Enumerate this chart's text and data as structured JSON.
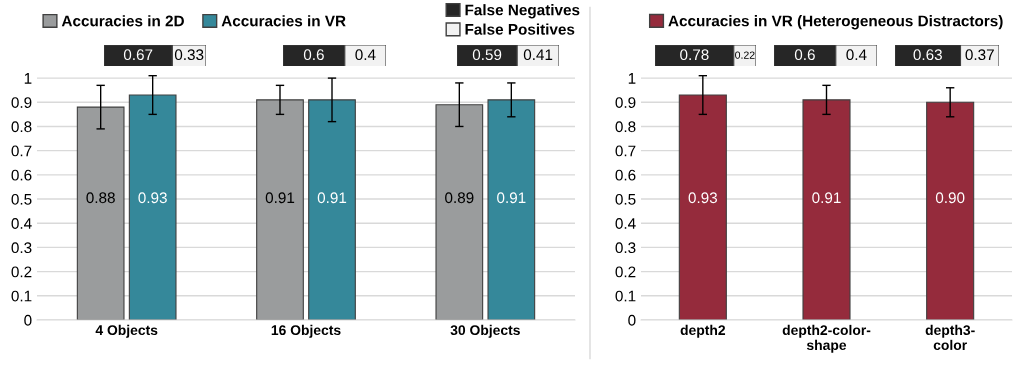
{
  "chart_data": [
    {
      "type": "bar",
      "orientation": "horizontal",
      "stacked": true,
      "categories": [
        null
      ],
      "xlim": [
        0,
        1
      ],
      "tick_labels": false,
      "data_labels": true,
      "series": [
        {
          "color": "#262626",
          "values": [
            0.67
          ]
        },
        {
          "color": "#f2f2f2",
          "values": [
            0.33
          ]
        }
      ]
    },
    {
      "type": "bar",
      "orientation": "horizontal",
      "stacked": true,
      "categories": [
        null
      ],
      "xlim": [
        0,
        1
      ],
      "tick_labels": false,
      "data_labels": true,
      "series": [
        {
          "color": "#262626",
          "values": [
            0.6
          ]
        },
        {
          "color": "#f2f2f2",
          "values": [
            0.4
          ]
        }
      ]
    },
    {
      "type": "bar",
      "orientation": "horizontal",
      "stacked": true,
      "categories": [
        null
      ],
      "xlim": [
        0,
        1
      ],
      "tick_labels": false,
      "data_labels": true,
      "legend": "top",
      "series": [
        {
          "name": "False Negatives",
          "color": "#262626",
          "values": [
            0.59
          ]
        },
        {
          "name": "False Positives",
          "color": "#f2f2f2",
          "values": [
            0.41
          ]
        }
      ]
    },
    {
      "type": "bar",
      "categories": [
        "4 Objects",
        "16 Objects",
        "30 Objects"
      ],
      "ylim": [
        0,
        1.05
      ],
      "yticks": [
        0,
        0.1,
        0.2,
        0.3,
        0.4,
        0.5,
        0.6,
        0.7,
        0.8,
        0.9,
        1
      ],
      "grid": "y",
      "legend": "top left",
      "series": [
        {
          "name": "Accuracies in 2D",
          "color": "#9a9c9d",
          "values": [
            0.88,
            0.91,
            0.89
          ],
          "errors": [
            0.09,
            0.06,
            0.09
          ],
          "value_labels": [
            "0.88",
            "0.91",
            "0.89"
          ]
        },
        {
          "name": "Accuracies in VR",
          "color": "#35889a",
          "values": [
            0.93,
            0.91,
            0.91
          ],
          "errors": [
            0.08,
            0.09,
            0.07
          ],
          "value_labels": [
            "0.93",
            "0.91",
            "0.91"
          ]
        }
      ]
    },
    {
      "type": "bar",
      "orientation": "horizontal",
      "stacked": true,
      "categories": [
        null
      ],
      "xlim": [
        0,
        1
      ],
      "tick_labels": false,
      "data_labels": true,
      "series": [
        {
          "color": "#262626",
          "values": [
            0.78
          ]
        },
        {
          "color": "#f2f2f2",
          "values": [
            0.22
          ]
        }
      ]
    },
    {
      "type": "bar",
      "orientation": "horizontal",
      "stacked": true,
      "categories": [
        null
      ],
      "xlim": [
        0,
        1
      ],
      "tick_labels": false,
      "data_labels": true,
      "series": [
        {
          "color": "#262626",
          "values": [
            0.6
          ]
        },
        {
          "color": "#f2f2f2",
          "values": [
            0.4
          ]
        }
      ]
    },
    {
      "type": "bar",
      "orientation": "horizontal",
      "stacked": true,
      "categories": [
        null
      ],
      "xlim": [
        0,
        1
      ],
      "tick_labels": false,
      "data_labels": true,
      "series": [
        {
          "color": "#262626",
          "values": [
            0.63
          ]
        },
        {
          "color": "#f2f2f2",
          "values": [
            0.37
          ]
        }
      ]
    },
    {
      "type": "bar",
      "categories": [
        "depth2",
        "depth2-color-\nshape",
        "depth3-\ncolor"
      ],
      "ylim": [
        0,
        1.05
      ],
      "yticks": [
        0,
        0.1,
        0.2,
        0.3,
        0.4,
        0.5,
        0.6,
        0.7,
        0.8,
        0.9,
        1
      ],
      "grid": "y",
      "legend": "top",
      "series": [
        {
          "name": "Accuracies in VR (Heterogeneous Distractors)",
          "color": "#952b3c",
          "values": [
            0.93,
            0.91,
            0.9
          ],
          "errors": [
            0.08,
            0.06,
            0.06
          ],
          "value_labels": [
            "0.93",
            "0.91",
            "0.90"
          ]
        }
      ]
    }
  ]
}
